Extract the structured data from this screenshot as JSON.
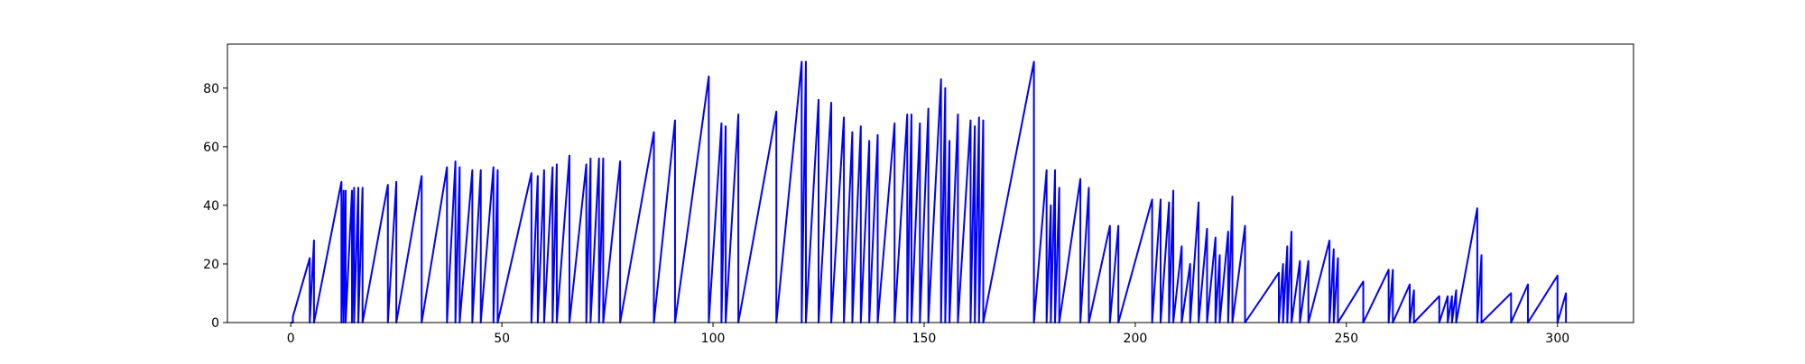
{
  "chart_data": {
    "type": "line",
    "title": "",
    "xlabel": "",
    "ylabel": "",
    "xlim": [
      -15,
      318
    ],
    "ylim": [
      0,
      95
    ],
    "xticks": [
      0,
      50,
      100,
      150,
      200,
      250,
      300
    ],
    "yticks": [
      0,
      20,
      40,
      60,
      80
    ],
    "grid": false,
    "legend": "none",
    "line_color": "#0000ff",
    "series": [
      {
        "x": [
          0,
          0.5,
          0.5,
          4.5,
          4.5,
          5.5,
          5.5,
          12,
          12,
          12.5,
          12.5,
          13,
          13,
          14.5,
          14.5,
          15,
          15,
          16,
          16,
          17,
          17,
          23,
          23,
          25,
          25,
          31,
          31,
          37,
          37,
          39,
          39,
          40,
          40,
          43,
          43,
          45,
          45,
          48,
          48,
          49,
          49,
          57,
          57,
          58.5,
          58.5,
          60,
          60,
          62,
          62,
          63,
          63,
          66,
          66,
          70,
          70,
          71,
          71,
          73,
          73,
          74,
          74,
          78,
          78,
          86,
          86,
          91,
          91,
          99,
          99,
          102,
          102,
          103,
          103,
          106,
          106,
          115,
          115,
          121,
          121,
          122,
          122,
          125,
          125,
          128,
          128,
          131,
          131,
          133,
          133,
          135,
          135,
          137,
          137,
          139,
          139,
          143,
          143,
          146,
          146,
          147,
          147,
          149,
          149,
          151,
          151,
          154,
          154,
          155,
          155,
          156,
          156,
          158,
          158,
          161,
          161,
          162,
          162,
          163,
          163,
          164,
          164,
          176,
          176,
          179,
          179,
          180,
          180,
          181,
          181,
          182,
          182,
          187,
          187,
          189,
          189,
          194,
          194,
          196,
          196,
          204,
          204,
          206,
          206,
          208,
          208,
          209,
          209,
          211,
          211,
          213,
          213,
          215,
          215,
          217,
          217,
          219,
          219,
          220,
          220,
          222,
          222,
          223,
          223,
          226,
          226,
          234,
          234,
          235,
          235,
          236,
          236,
          237,
          237,
          239,
          239,
          241,
          241,
          246,
          246,
          247,
          247,
          248,
          248,
          254,
          254,
          260,
          260,
          261,
          261,
          265,
          265,
          266,
          266,
          272,
          272,
          274,
          274,
          275,
          275,
          276,
          276,
          281,
          281,
          282,
          282,
          289,
          289,
          293,
          293,
          300,
          300,
          302,
          302
        ],
        "y": [
          0,
          0,
          2,
          22,
          0,
          28,
          0,
          48,
          0,
          45,
          0,
          45,
          0,
          45,
          0,
          46,
          0,
          46,
          0,
          46,
          0,
          47,
          0,
          48,
          0,
          50,
          0,
          53,
          0,
          55,
          0,
          53,
          0,
          52,
          0,
          52,
          0,
          53,
          0,
          52,
          0,
          51,
          0,
          50,
          0,
          52,
          0,
          53,
          0,
          54,
          0,
          57,
          0,
          54,
          0,
          56,
          0,
          56,
          0,
          56,
          0,
          55,
          0,
          65,
          0,
          69,
          0,
          84,
          0,
          68,
          0,
          67,
          0,
          71,
          0,
          72,
          0,
          89,
          0,
          89,
          0,
          76,
          0,
          75,
          0,
          70,
          0,
          65,
          0,
          67,
          0,
          62,
          0,
          64,
          0,
          68,
          0,
          71,
          0,
          71,
          0,
          68,
          0,
          73,
          0,
          83,
          0,
          80,
          0,
          62,
          0,
          71,
          0,
          69,
          0,
          67,
          0,
          70,
          0,
          69,
          0,
          89,
          0,
          52,
          0,
          40,
          0,
          52,
          0,
          46,
          0,
          49,
          0,
          46,
          0,
          33,
          0,
          33,
          0,
          42,
          0,
          42,
          0,
          41,
          0,
          45,
          0,
          26,
          0,
          20,
          0,
          41,
          0,
          32,
          0,
          29,
          0,
          23,
          0,
          31,
          0,
          43,
          0,
          33,
          0,
          17,
          0,
          20,
          0,
          26,
          0,
          31,
          0,
          21,
          0,
          21,
          0,
          28,
          0,
          25,
          0,
          22,
          0,
          14,
          0,
          18,
          0,
          18,
          0,
          13,
          0,
          11,
          0,
          9,
          0,
          9,
          0,
          9,
          0,
          11,
          0,
          39,
          0,
          23,
          0,
          10,
          0,
          13,
          0,
          16,
          0,
          10,
          0
        ]
      }
    ]
  }
}
